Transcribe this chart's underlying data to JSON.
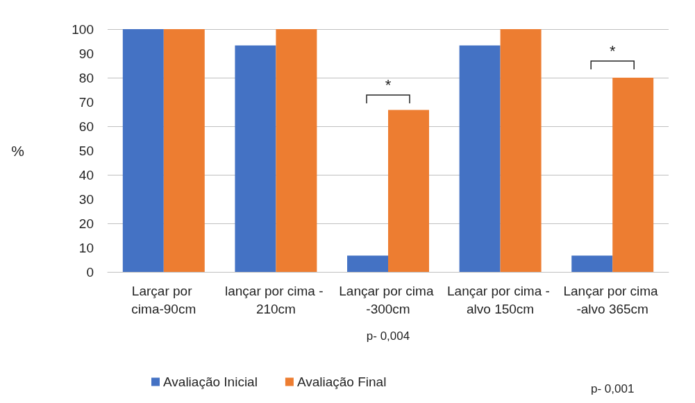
{
  "chart_data": {
    "type": "bar",
    "ylabel": "%",
    "categories": [
      "Larçar por cima-90cm",
      "lançar por cima - 210cm",
      "Lançar por cima -300cm",
      "Lançar por cima - alvo 150cm",
      "Lançar por cima -alvo 365cm"
    ],
    "series": [
      {
        "name": "Avaliação Inicial",
        "color": "#4472c4",
        "values": [
          100,
          93.3,
          6.7,
          93.3,
          6.7
        ]
      },
      {
        "name": "Avaliação Final",
        "color": "#ed7d31",
        "values": [
          100,
          100,
          66.7,
          100,
          80
        ]
      }
    ],
    "ylim": [
      0,
      100
    ],
    "yticks": [
      0,
      10,
      20,
      30,
      40,
      50,
      60,
      70,
      80,
      90,
      100
    ],
    "grid": "y",
    "legend": "bottom left",
    "annotations": [
      "*",
      "*",
      "p- 0,004",
      "p- 0,001"
    ]
  }
}
